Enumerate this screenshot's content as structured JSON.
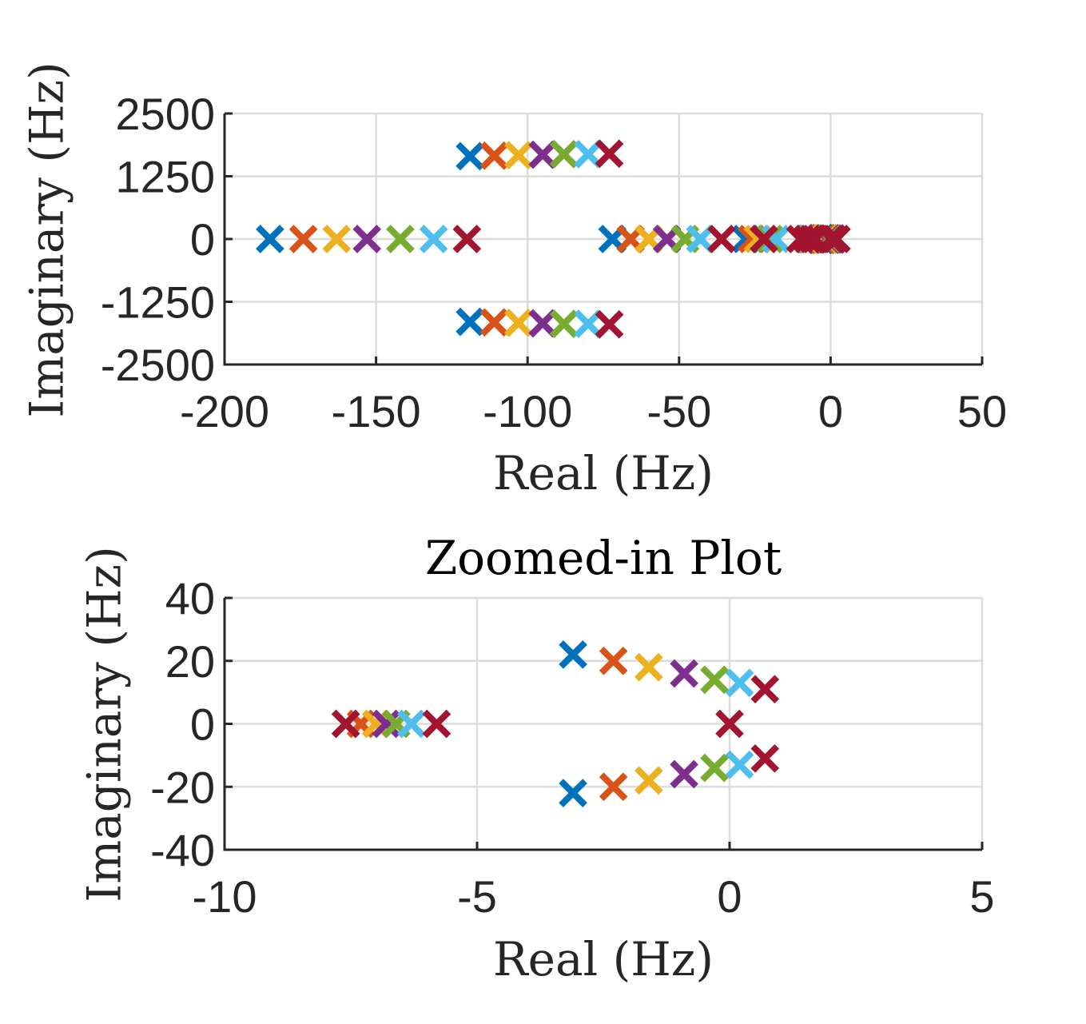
{
  "chart_data": [
    {
      "type": "scatter",
      "title": "",
      "xlabel": "Real (Hz)",
      "ylabel": "Imaginary (Hz)",
      "xlim": [
        -200,
        50
      ],
      "ylim": [
        -2500,
        2500
      ],
      "xticks": [
        "-200",
        "-150",
        "-100",
        "-50",
        "0",
        "50"
      ],
      "yticks": [
        "2500",
        "1250",
        "0",
        "-1250",
        "-2500"
      ],
      "grid": true,
      "marker": "x",
      "series": [
        {
          "color": "#0072BD",
          "points": [
            [
              -119,
              1650
            ],
            [
              -119,
              -1650
            ],
            [
              -185,
              0
            ],
            [
              -72,
              0
            ],
            [
              -28,
              0
            ],
            [
              -7.5,
              0
            ],
            [
              -3.2,
              22
            ],
            [
              -3.2,
              -22
            ]
          ]
        },
        {
          "color": "#D95319",
          "points": [
            [
              -111,
              1660
            ],
            [
              -111,
              -1660
            ],
            [
              -174,
              0
            ],
            [
              -66,
              0
            ],
            [
              -26,
              0
            ],
            [
              -7.3,
              0
            ],
            [
              -2.4,
              20
            ],
            [
              -2.4,
              -20
            ]
          ]
        },
        {
          "color": "#EDB120",
          "points": [
            [
              -103,
              1670
            ],
            [
              -103,
              -1670
            ],
            [
              -163,
              0
            ],
            [
              -60,
              0
            ],
            [
              -24,
              0
            ],
            [
              -7.0,
              0
            ],
            [
              -1.6,
              18
            ],
            [
              -1.6,
              -18
            ]
          ]
        },
        {
          "color": "#7E2F8E",
          "points": [
            [
              -95,
              1680
            ],
            [
              -95,
              -1680
            ],
            [
              -153,
              0
            ],
            [
              -54,
              0
            ],
            [
              -22,
              0
            ],
            [
              -6.8,
              0
            ],
            [
              -0.9,
              16
            ],
            [
              -0.9,
              -16
            ]
          ]
        },
        {
          "color": "#77AC30",
          "points": [
            [
              -88,
              1690
            ],
            [
              -88,
              -1690
            ],
            [
              -142,
              0
            ],
            [
              -48,
              0
            ],
            [
              -20,
              0
            ],
            [
              -6.6,
              0
            ],
            [
              -0.3,
              14
            ],
            [
              -0.3,
              -14
            ]
          ]
        },
        {
          "color": "#4DBEEE",
          "points": [
            [
              -80,
              1690
            ],
            [
              -80,
              -1690
            ],
            [
              -131,
              0
            ],
            [
              -43,
              0
            ],
            [
              -18,
              0
            ],
            [
              -6.3,
              0
            ],
            [
              0.2,
              13
            ],
            [
              0.2,
              -13
            ]
          ]
        },
        {
          "color": "#A2142F",
          "points": [
            [
              -73,
              1700
            ],
            [
              -73,
              -1700
            ],
            [
              -120,
              0
            ],
            [
              -36,
              0
            ],
            [
              -22,
              0
            ],
            [
              -10,
              0
            ],
            [
              -5,
              0
            ],
            [
              0,
              0
            ],
            [
              2,
              0
            ],
            [
              -7.6,
              0
            ],
            [
              -5.8,
              0
            ],
            [
              0.7,
              11
            ],
            [
              0.7,
              -11
            ]
          ]
        }
      ]
    },
    {
      "type": "scatter",
      "title": "Zoomed-in Plot",
      "xlabel": "Real (Hz)",
      "ylabel": "Imaginary (Hz)",
      "xlim": [
        -10,
        5
      ],
      "ylim": [
        -40,
        40
      ],
      "xticks": [
        "-10",
        "-5",
        "0",
        "5"
      ],
      "yticks": [
        "40",
        "20",
        "0",
        "-20",
        "-40"
      ],
      "grid": true,
      "marker": "x",
      "series": [
        {
          "color": "#0072BD",
          "points": [
            [
              -7.6,
              0
            ],
            [
              -3.1,
              22
            ],
            [
              -3.1,
              -22
            ]
          ]
        },
        {
          "color": "#D95319",
          "points": [
            [
              -7.3,
              0
            ],
            [
              -2.3,
              20
            ],
            [
              -2.3,
              -20
            ]
          ]
        },
        {
          "color": "#EDB120",
          "points": [
            [
              -7.0,
              0
            ],
            [
              -1.6,
              18
            ],
            [
              -1.6,
              -18
            ]
          ]
        },
        {
          "color": "#7E2F8E",
          "points": [
            [
              -6.8,
              0
            ],
            [
              -0.9,
              16
            ],
            [
              -0.9,
              -16
            ]
          ]
        },
        {
          "color": "#77AC30",
          "points": [
            [
              -6.6,
              0
            ],
            [
              -0.3,
              14
            ],
            [
              -0.3,
              -14
            ]
          ]
        },
        {
          "color": "#4DBEEE",
          "points": [
            [
              -6.3,
              0
            ],
            [
              0.2,
              13
            ],
            [
              0.2,
              -13
            ]
          ]
        },
        {
          "color": "#A2142F",
          "points": [
            [
              -7.6,
              0
            ],
            [
              -5.8,
              0
            ],
            [
              0,
              0
            ],
            [
              0.7,
              11
            ],
            [
              0.7,
              -11
            ]
          ]
        }
      ]
    }
  ]
}
